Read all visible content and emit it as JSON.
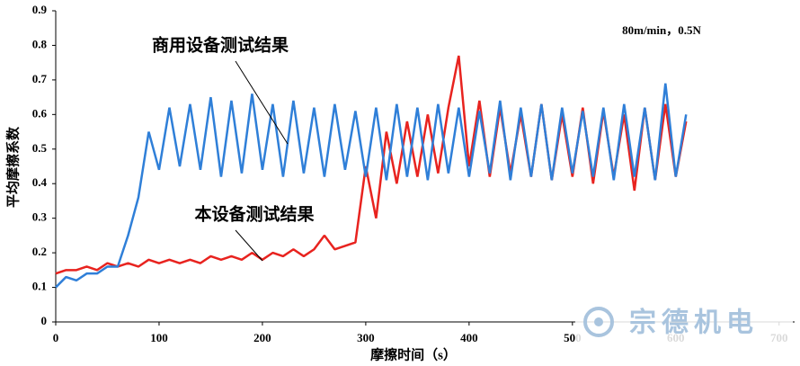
{
  "chart_data": {
    "type": "line",
    "note": "80m/min，0.5N",
    "ylabel": "平均摩擦系数",
    "xlabel": "摩擦时间（s）",
    "annotations": [
      "商用设备测试结果",
      "本设备测试结果"
    ],
    "watermark": "宗德机电",
    "xlim": [
      0,
      715
    ],
    "xticks": [
      0,
      100,
      200,
      300,
      400,
      500,
      600,
      700
    ],
    "ylim": [
      0,
      0.9
    ],
    "yticks": [
      0,
      0.1,
      0.2,
      0.3,
      0.4,
      0.5,
      0.6,
      0.7,
      0.8,
      0.9
    ],
    "x": [
      0,
      10,
      20,
      30,
      40,
      50,
      60,
      70,
      80,
      90,
      100,
      110,
      120,
      130,
      140,
      150,
      160,
      170,
      180,
      190,
      200,
      210,
      220,
      230,
      240,
      250,
      260,
      270,
      280,
      290,
      300,
      310,
      320,
      330,
      340,
      350,
      360,
      370,
      380,
      390,
      400,
      410,
      420,
      430,
      440,
      450,
      460,
      470,
      480,
      490,
      500,
      510,
      520,
      530,
      540,
      550,
      560,
      570,
      580,
      590,
      600,
      610
    ],
    "series": [
      {
        "color": "#e8231f",
        "values": [
          0.14,
          0.15,
          0.15,
          0.16,
          0.15,
          0.17,
          0.16,
          0.17,
          0.16,
          0.18,
          0.17,
          0.18,
          0.17,
          0.18,
          0.17,
          0.19,
          0.18,
          0.19,
          0.18,
          0.2,
          0.18,
          0.2,
          0.19,
          0.21,
          0.19,
          0.21,
          0.25,
          0.21,
          0.22,
          0.23,
          0.45,
          0.3,
          0.55,
          0.4,
          0.58,
          0.42,
          0.6,
          0.43,
          0.62,
          0.77,
          0.45,
          0.64,
          0.42,
          0.62,
          0.43,
          0.6,
          0.42,
          0.63,
          0.41,
          0.6,
          0.42,
          0.62,
          0.4,
          0.61,
          0.42,
          0.6,
          0.38,
          0.62,
          0.41,
          0.63,
          0.42,
          0.58
        ]
      },
      {
        "color": "#2f7fd8",
        "values": [
          0.1,
          0.13,
          0.12,
          0.14,
          0.14,
          0.16,
          0.16,
          0.25,
          0.36,
          0.55,
          0.44,
          0.62,
          0.45,
          0.63,
          0.44,
          0.65,
          0.42,
          0.64,
          0.43,
          0.66,
          0.44,
          0.63,
          0.42,
          0.64,
          0.43,
          0.62,
          0.42,
          0.63,
          0.44,
          0.61,
          0.42,
          0.62,
          0.41,
          0.63,
          0.42,
          0.62,
          0.41,
          0.63,
          0.43,
          0.62,
          0.42,
          0.61,
          0.43,
          0.64,
          0.41,
          0.62,
          0.42,
          0.63,
          0.41,
          0.62,
          0.43,
          0.61,
          0.42,
          0.62,
          0.41,
          0.63,
          0.42,
          0.62,
          0.41,
          0.69,
          0.42,
          0.6
        ]
      }
    ]
  }
}
